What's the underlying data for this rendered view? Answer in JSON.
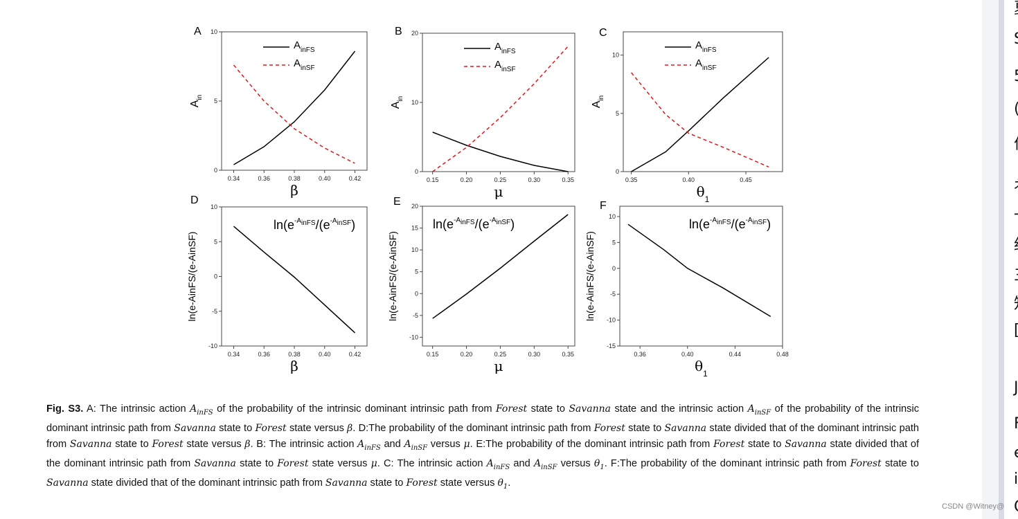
{
  "chart_data": [
    {
      "panel": "A",
      "type": "line",
      "xlabel": "β",
      "xsub": "",
      "ylabel": "A",
      "ylabel_sub": "in",
      "xlim": [
        0.332,
        0.428
      ],
      "ylim": [
        0,
        10
      ],
      "xticks": [
        0.34,
        0.36,
        0.38,
        0.4,
        0.42
      ],
      "xtick_labels": [
        "0.34",
        "0.36",
        "0.38",
        "0.40",
        "0.42"
      ],
      "yticks": [
        0,
        5,
        10
      ],
      "ytick_labels": [
        "0",
        "5",
        "10"
      ],
      "legend": [
        "A_inFS",
        "A_inSF"
      ],
      "series": [
        {
          "name": "A_inFS",
          "style": "solid",
          "x": [
            0.34,
            0.36,
            0.38,
            0.4,
            0.42
          ],
          "y": [
            0.4,
            1.7,
            3.5,
            5.8,
            8.6
          ]
        },
        {
          "name": "A_inSF",
          "style": "dash",
          "x": [
            0.34,
            0.36,
            0.38,
            0.4,
            0.42
          ],
          "y": [
            7.6,
            5.0,
            3.0,
            1.6,
            0.5
          ]
        }
      ]
    },
    {
      "panel": "B",
      "type": "line",
      "xlabel": "μ",
      "xsub": "",
      "ylabel": "A",
      "ylabel_sub": "in",
      "xlim": [
        0.135,
        0.36
      ],
      "ylim": [
        0,
        20
      ],
      "xticks": [
        0.15,
        0.2,
        0.25,
        0.3,
        0.35
      ],
      "xtick_labels": [
        "0.15",
        "0.20",
        "0.25",
        "0.30",
        "0.35"
      ],
      "yticks": [
        0,
        10,
        20
      ],
      "ytick_labels": [
        "0",
        "10",
        "20"
      ],
      "legend": [
        "A_inFS",
        "A_inSF"
      ],
      "series": [
        {
          "name": "A_inFS",
          "style": "solid",
          "x": [
            0.15,
            0.2,
            0.25,
            0.3,
            0.35
          ],
          "y": [
            5.7,
            3.8,
            2.2,
            0.9,
            0.0
          ]
        },
        {
          "name": "A_inSF",
          "style": "dash",
          "x": [
            0.15,
            0.2,
            0.25,
            0.3,
            0.35
          ],
          "y": [
            0.0,
            3.5,
            7.8,
            12.7,
            18.1
          ]
        }
      ]
    },
    {
      "panel": "C",
      "type": "line",
      "xlabel": "θ",
      "xsub": "1",
      "ylabel": "A",
      "ylabel_sub": "in",
      "xlim": [
        0.343,
        0.482
      ],
      "ylim": [
        0,
        12
      ],
      "xticks": [
        0.35,
        0.4,
        0.45
      ],
      "xtick_labels": [
        "0.35",
        "0.40",
        "0.45"
      ],
      "yticks": [
        0,
        5,
        10
      ],
      "ytick_labels": [
        "0",
        "5",
        "10"
      ],
      "legend": [
        "A_inFS",
        "A_inSF"
      ],
      "series": [
        {
          "name": "A_inFS",
          "style": "solid",
          "x": [
            0.35,
            0.38,
            0.4,
            0.43,
            0.47
          ],
          "y": [
            0.0,
            1.7,
            3.5,
            6.3,
            9.8
          ]
        },
        {
          "name": "A_inSF",
          "style": "dash",
          "x": [
            0.35,
            0.38,
            0.4,
            0.43,
            0.47
          ],
          "y": [
            8.5,
            4.9,
            3.3,
            2.1,
            0.4
          ]
        }
      ]
    },
    {
      "panel": "D",
      "type": "line",
      "xlabel": "β",
      "xsub": "",
      "xlim": [
        0.332,
        0.428
      ],
      "ylim": [
        -10,
        10
      ],
      "xticks": [
        0.34,
        0.36,
        0.38,
        0.4,
        0.42
      ],
      "xtick_labels": [
        "0.34",
        "0.36",
        "0.38",
        "0.40",
        "0.42"
      ],
      "yticks": [
        -10,
        -5,
        0,
        5,
        10
      ],
      "ytick_labels": [
        "-10",
        "-5",
        "0",
        "5",
        "10"
      ],
      "annotation": "ln(e-AinFS/(e-AinSF)",
      "ylabel": "ln(e-AinFS/(e-AinSF)",
      "series": [
        {
          "name": "ratio",
          "style": "solid",
          "x": [
            0.34,
            0.36,
            0.38,
            0.4,
            0.42
          ],
          "y": [
            7.2,
            3.5,
            -0.1,
            -4.1,
            -8.1
          ]
        }
      ]
    },
    {
      "panel": "E",
      "type": "line",
      "xlabel": "μ",
      "xsub": "",
      "xlim": [
        0.135,
        0.36
      ],
      "ylim": [
        -12,
        20
      ],
      "xticks": [
        0.15,
        0.2,
        0.25,
        0.3,
        0.35
      ],
      "xtick_labels": [
        "0.15",
        "0.20",
        "0.25",
        "0.30",
        "0.35"
      ],
      "yticks": [
        -10,
        -5,
        0,
        5,
        10,
        15,
        20
      ],
      "ytick_labels": [
        "-10",
        "-5",
        "0",
        "5",
        "10",
        "15",
        "20"
      ],
      "annotation": "ln(e-AinFS/(e-AinSF)",
      "ylabel": "ln(e-AinFS/(e-AinSF)",
      "series": [
        {
          "name": "ratio",
          "style": "solid",
          "x": [
            0.15,
            0.2,
            0.25,
            0.3,
            0.35
          ],
          "y": [
            -5.7,
            -0.1,
            5.8,
            12.0,
            18.1
          ]
        }
      ]
    },
    {
      "panel": "F",
      "type": "line",
      "xlabel": "θ",
      "xsub": "1",
      "xlim": [
        0.343,
        0.48
      ],
      "ylim": [
        -15,
        12
      ],
      "xticks": [
        0.36,
        0.4,
        0.44,
        0.48
      ],
      "xtick_labels": [
        "0.36",
        "0.40",
        "0.44",
        "0.48"
      ],
      "yticks": [
        -15,
        -10,
        -5,
        0,
        5,
        10
      ],
      "ytick_labels": [
        "-15",
        "-10",
        "-5",
        "0",
        "5",
        "10"
      ],
      "annotation": "ln(e-AinFS/(e-AinSF)",
      "ylabel": "ln(e-AinFS/(e-AinSF)",
      "series": [
        {
          "name": "ratio",
          "style": "solid",
          "x": [
            0.35,
            0.38,
            0.4,
            0.43,
            0.47
          ],
          "y": [
            8.5,
            3.6,
            0.0,
            -3.8,
            -9.3
          ]
        }
      ]
    }
  ],
  "caption": {
    "label": "Fig. S3.",
    "parts": [
      "A: The intrinsic action ",
      " of the probability of the intrinsic dominant intrinsic path from ",
      " state to ",
      " state and the intrinsic action ",
      " of the probability of the intrinsic dominant intrinsic path from ",
      " state to ",
      " state versus ",
      ". D:The probability of the dominant intrinsic path from ",
      " state to ",
      " state divided that of the dominant intrinsic path from ",
      " state to ",
      " state versus ",
      ". B: The intrinsic action ",
      " and ",
      " versus ",
      ". E:The probability of the dominant intrinsic path from ",
      " state to ",
      " state divided that of the dominant intrinsic path from ",
      " state to ",
      " state versus ",
      ". C: The intrinsic action ",
      " and ",
      " versus ",
      ". F:The probability of the dominant intrinsic path from ",
      " state to ",
      " state divided that of the dominant intrinsic path from ",
      " state to ",
      " state versus ",
      "."
    ],
    "sym": {
      "A": "A",
      "inFS": "inFS",
      "inSF": "inSF",
      "forest": "Forest",
      "savanna": "Savanna",
      "beta": "β",
      "mu": "μ",
      "theta": "θ",
      "one": "1"
    }
  },
  "right_strip": [
    "夏",
    "S",
    "5",
    "(",
    "价",
    "衤",
    "一",
    "约",
    "三",
    "知",
    "[",
    "JI",
    "F",
    "e",
    "i",
    "C"
  ],
  "watermark": "CSDN @Witney@"
}
